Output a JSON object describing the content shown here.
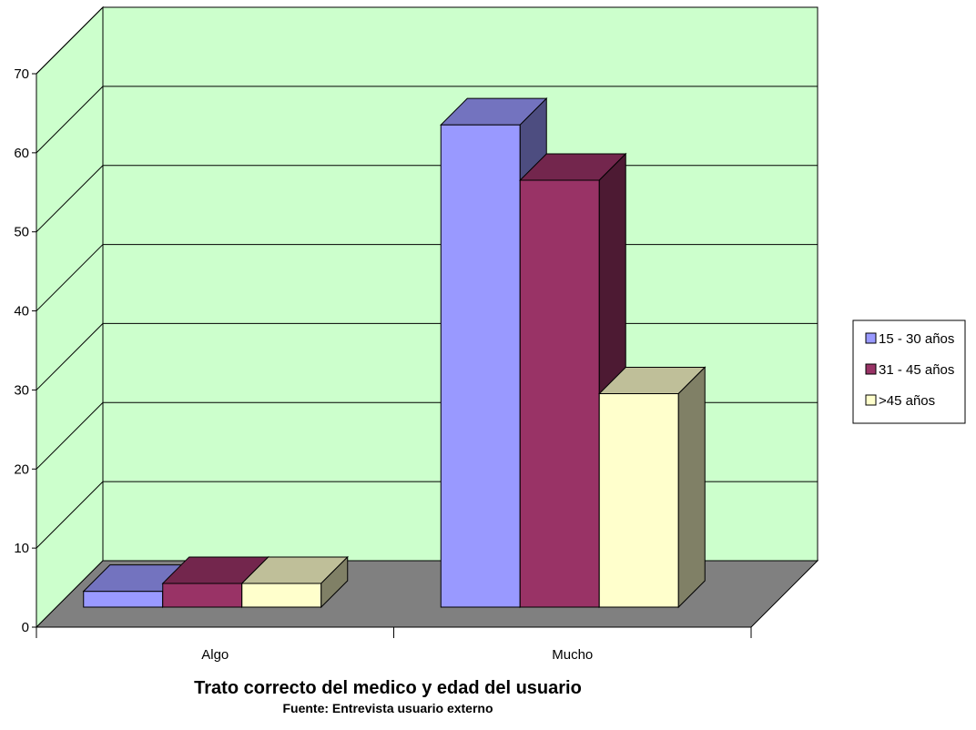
{
  "chart_data": {
    "type": "bar",
    "style": "3d-clustered-column",
    "categories": [
      "Algo",
      "Mucho"
    ],
    "series": [
      {
        "name": "15 - 30 años",
        "values": [
          2,
          61
        ],
        "color": "#9999FF"
      },
      {
        "name": "31 - 45 años",
        "values": [
          3,
          54
        ],
        "color": "#993366"
      },
      {
        "name": ">45 años",
        "values": [
          3,
          27
        ],
        "color": "#FFFFCC"
      }
    ],
    "ylim": [
      0,
      70
    ],
    "yticks": [
      0,
      10,
      20,
      30,
      40,
      50,
      60,
      70
    ],
    "grid": true,
    "legend_position": "right",
    "wall_color": "#CCFFCC",
    "floor_color": "#808080",
    "title": "Trato correcto del medico y edad del usuario",
    "subtitle": "Fuente: Entrevista usuario externo",
    "xlabel": "",
    "ylabel": ""
  }
}
